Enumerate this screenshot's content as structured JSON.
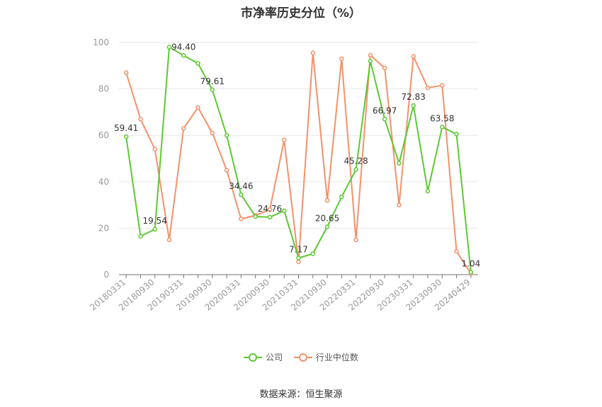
{
  "chart_data": {
    "type": "line",
    "title": "市净率历史分位（%）",
    "xlabel": "",
    "ylabel": "",
    "ylim": [
      0,
      100
    ],
    "yticks": [
      0,
      20,
      40,
      60,
      80,
      100
    ],
    "grid": true,
    "legend_position": "bottom",
    "x": [
      "20180331",
      "20180630",
      "20180930",
      "20181231",
      "20190331",
      "20190630",
      "20190930",
      "20191231",
      "20200331",
      "20200630",
      "20200930",
      "20201231",
      "20210331",
      "20210630",
      "20210930",
      "20211231",
      "20220331",
      "20220630",
      "20220930",
      "20221231",
      "20230331",
      "20230630",
      "20230930",
      "20231231",
      "20240429"
    ],
    "x_tick_labels": [
      "20180331",
      "20180930",
      "20190331",
      "20190930",
      "20200331",
      "20200930",
      "20210331",
      "20210930",
      "20220331",
      "20220930",
      "20230331",
      "20230930",
      "20240429"
    ],
    "series": [
      {
        "name": "公司",
        "color": "#5cc932",
        "values": [
          59.41,
          16.5,
          19.54,
          98.0,
          94.4,
          91.0,
          79.61,
          60.0,
          34.46,
          25.0,
          24.76,
          27.5,
          7.17,
          9.0,
          20.65,
          33.5,
          45.28,
          92.0,
          66.97,
          48.0,
          72.83,
          36.0,
          63.58,
          60.5,
          1.04
        ],
        "labels": {
          "0": "59.41",
          "2": "19.54",
          "4": "94.40",
          "6": "79.61",
          "8": "34.46",
          "10": "24.76",
          "12": "7.17",
          "14": "20.65",
          "16": "45.28",
          "18": "66.97",
          "20": "72.83",
          "22": "63.58",
          "24": "1.04"
        }
      },
      {
        "name": "行业中位数",
        "color": "#f4916a",
        "values": [
          87.0,
          67.0,
          54.0,
          15.0,
          63.0,
          72.0,
          61.0,
          45.0,
          24.0,
          25.5,
          28.0,
          58.0,
          5.5,
          95.5,
          32.0,
          93.0,
          15.0,
          94.5,
          89.0,
          30.0,
          94.0,
          80.5,
          81.5,
          10.0,
          0.5
        ]
      }
    ]
  },
  "legend": {
    "company": "公司",
    "industry": "行业中位数"
  },
  "source": "数据来源：恒生聚源"
}
